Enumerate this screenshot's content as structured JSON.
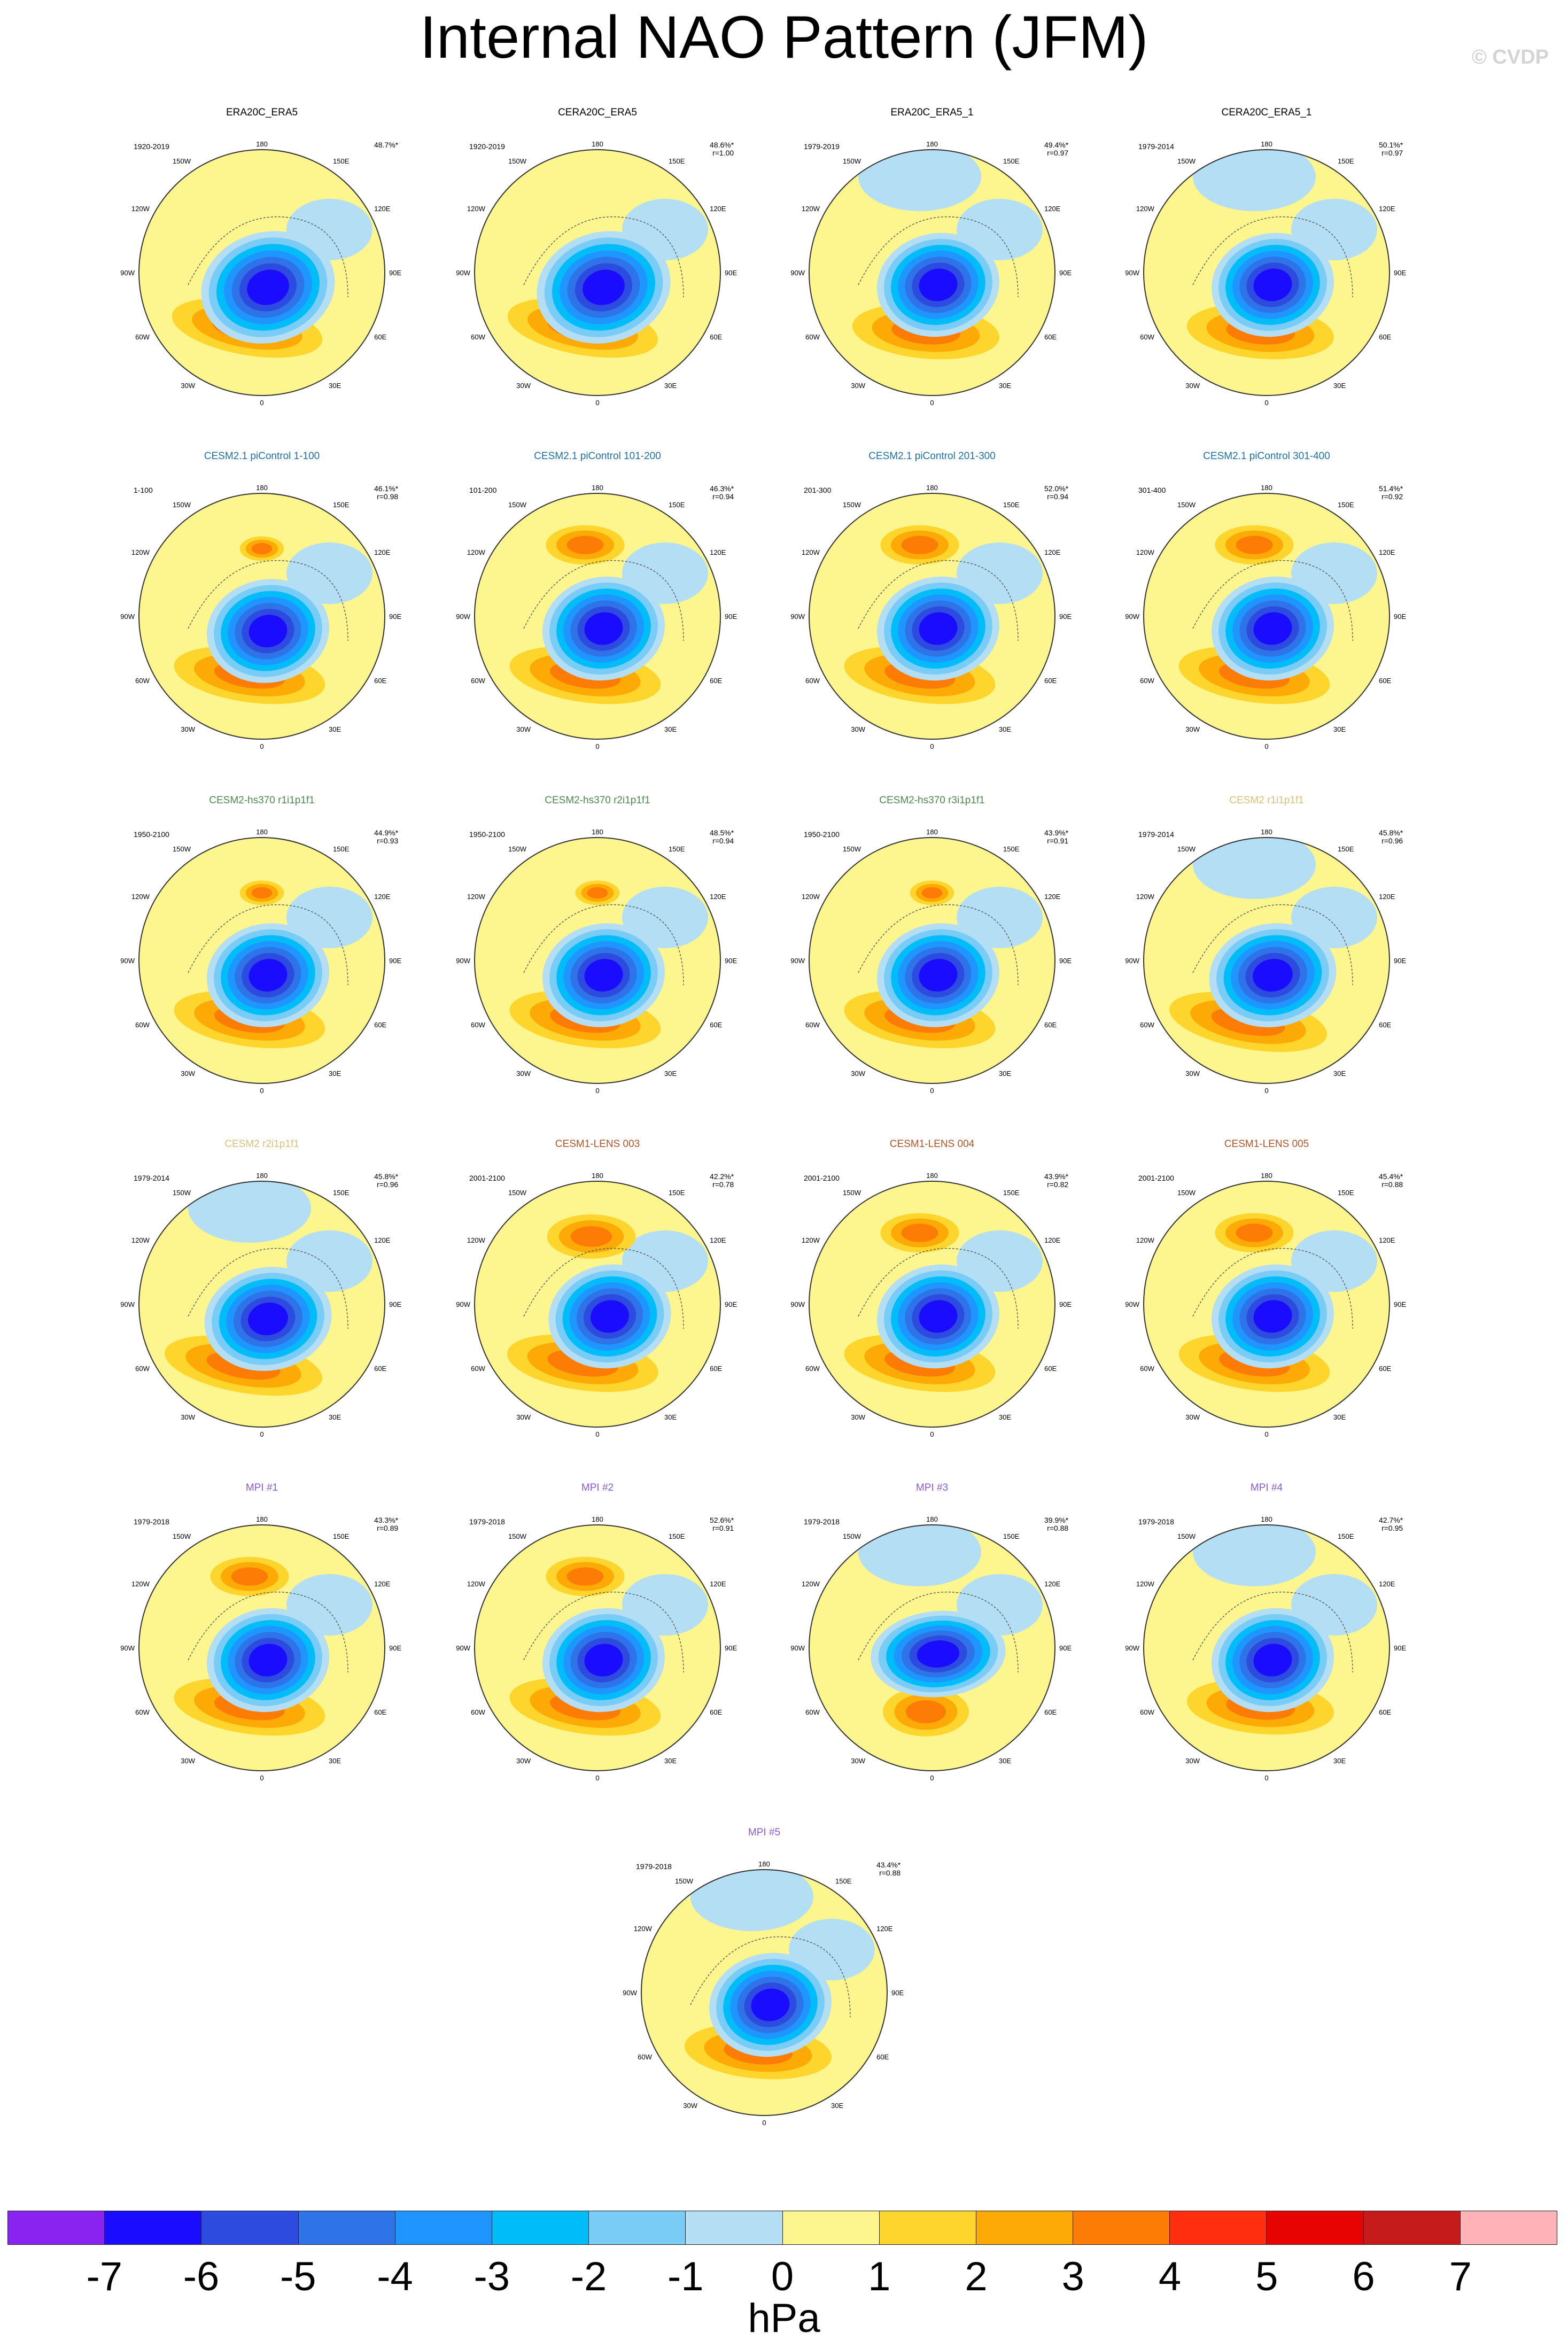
{
  "title": "Internal NAO Pattern (JFM)",
  "credit": "© CVDP",
  "lon_labels": [
    "180",
    "150W",
    "150E",
    "120W",
    "120E",
    "90W",
    "90E",
    "60W",
    "60E",
    "30W",
    "30E",
    "0"
  ],
  "panels": [
    {
      "title": "ERA20C_ERA5",
      "title_color": "#000000",
      "period": "1920-2019",
      "pct": "48.7%*",
      "r": "",
      "variant": 0
    },
    {
      "title": "CERA20C_ERA5",
      "title_color": "#000000",
      "period": "1920-2019",
      "pct": "48.6%*",
      "r": "r=1.00",
      "variant": 0
    },
    {
      "title": "ERA20C_ERA5_1",
      "title_color": "#000000",
      "period": "1979-2019",
      "pct": "49.4%*",
      "r": "r=0.97",
      "variant": 1
    },
    {
      "title": "CERA20C_ERA5_1",
      "title_color": "#000000",
      "period": "1979-2014",
      "pct": "50.1%*",
      "r": "r=0.97",
      "variant": 1
    },
    {
      "title": "CESM2.1 piControl 1-100",
      "title_color": "#1f6fa8",
      "period": "1-100",
      "pct": "46.1%*",
      "r": "r=0.98",
      "variant": 2
    },
    {
      "title": "CESM2.1 piControl 101-200",
      "title_color": "#1f6fa8",
      "period": "101-200",
      "pct": "46.3%*",
      "r": "r=0.94",
      "variant": 3
    },
    {
      "title": "CESM2.1 piControl 201-300",
      "title_color": "#1f6fa8",
      "period": "201-300",
      "pct": "52.0%*",
      "r": "r=0.94",
      "variant": 3
    },
    {
      "title": "CESM2.1 piControl 301-400",
      "title_color": "#1f6fa8",
      "period": "301-400",
      "pct": "51.4%*",
      "r": "r=0.92",
      "variant": 3
    },
    {
      "title": "CESM2-hs370 r1i1p1f1",
      "title_color": "#4d8a4d",
      "period": "1950-2100",
      "pct": "44.9%*",
      "r": "r=0.93",
      "variant": 2
    },
    {
      "title": "CESM2-hs370 r2i1p1f1",
      "title_color": "#4d8a4d",
      "period": "1950-2100",
      "pct": "48.5%*",
      "r": "r=0.94",
      "variant": 2
    },
    {
      "title": "CESM2-hs370 r3i1p1f1",
      "title_color": "#4d8a4d",
      "period": "1950-2100",
      "pct": "43.9%*",
      "r": "r=0.91",
      "variant": 2
    },
    {
      "title": "CESM2 r1i1p1f1",
      "title_color": "#d8c27a",
      "period": "1979-2014",
      "pct": "45.8%*",
      "r": "r=0.96",
      "variant": 4
    },
    {
      "title": "CESM2 r2i1p1f1",
      "title_color": "#d8c27a",
      "period": "1979-2014",
      "pct": "45.8%*",
      "r": "r=0.96",
      "variant": 4
    },
    {
      "title": "CESM1-LENS 003",
      "title_color": "#b0542a",
      "period": "2001-2100",
      "pct": "42.2%*",
      "r": "r=0.78",
      "variant": 5
    },
    {
      "title": "CESM1-LENS 004",
      "title_color": "#b0542a",
      "period": "2001-2100",
      "pct": "43.9%*",
      "r": "r=0.82",
      "variant": 3
    },
    {
      "title": "CESM1-LENS 005",
      "title_color": "#b0542a",
      "period": "2001-2100",
      "pct": "45.4%*",
      "r": "r=0.88",
      "variant": 3
    },
    {
      "title": "MPI #1",
      "title_color": "#8a5ad6",
      "period": "1979-2018",
      "pct": "43.3%*",
      "r": "r=0.89",
      "variant": 3
    },
    {
      "title": "MPI #2",
      "title_color": "#8a5ad6",
      "period": "1979-2018",
      "pct": "52.6%*",
      "r": "r=0.91",
      "variant": 3
    },
    {
      "title": "MPI #3",
      "title_color": "#8a5ad6",
      "period": "1979-2018",
      "pct": "39.9%*",
      "r": "r=0.88",
      "variant": 6
    },
    {
      "title": "MPI #4",
      "title_color": "#8a5ad6",
      "period": "1979-2018",
      "pct": "42.7%*",
      "r": "r=0.95",
      "variant": 1
    },
    {
      "title": "MPI #5",
      "title_color": "#8a5ad6",
      "period": "1979-2018",
      "pct": "43.4%*",
      "r": "r=0.88",
      "variant": 1
    }
  ],
  "colorbar": {
    "colors": [
      "#8a23f0",
      "#1a0dff",
      "#2e4be0",
      "#2f73e8",
      "#1e95ff",
      "#00bdfa",
      "#78ccf5",
      "#b3def3",
      "#fdf68f",
      "#fed52c",
      "#fdaa06",
      "#fd7c06",
      "#fe2e0e",
      "#e80303",
      "#c61b1b",
      "#ffb3b8"
    ],
    "ticks": [
      "-7",
      "-6",
      "-5",
      "-4",
      "-3",
      "-2",
      "-1",
      "0",
      "1",
      "2",
      "3",
      "4",
      "5",
      "6",
      "7"
    ],
    "unit": "hPa"
  }
}
